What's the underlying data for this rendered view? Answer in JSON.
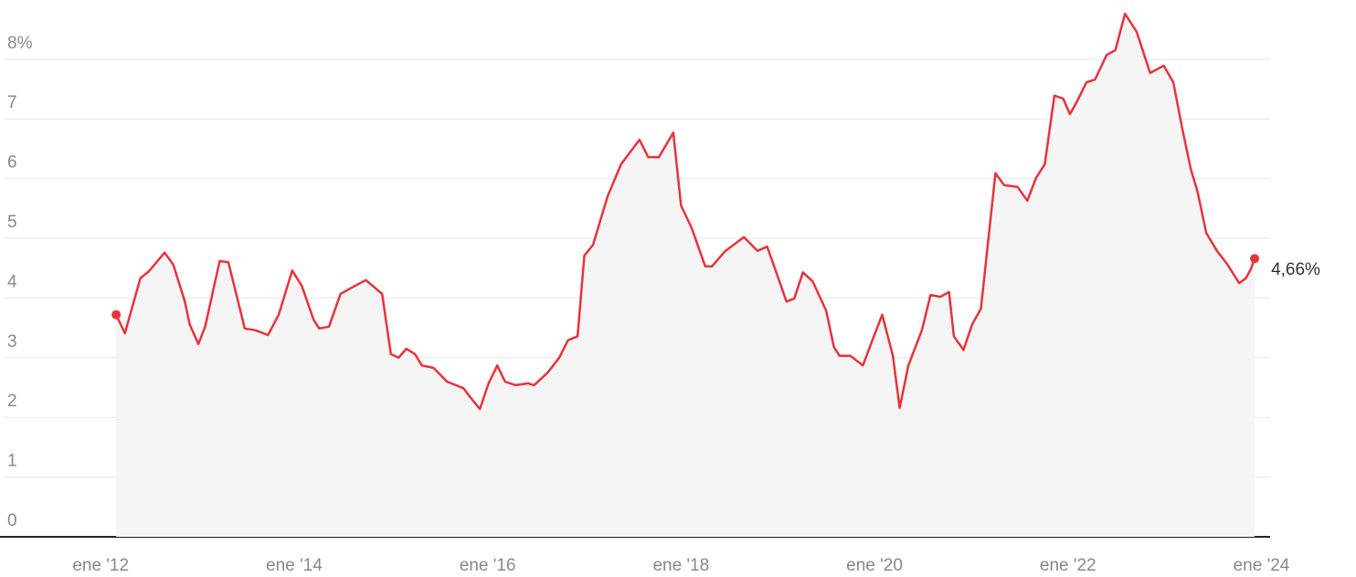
{
  "chart_data": {
    "type": "line",
    "x": [
      2012.16,
      2012.25,
      2012.41,
      2012.5,
      2012.66,
      2012.75,
      2012.87,
      2012.92,
      2013.01,
      2013.08,
      2013.23,
      2013.32,
      2013.49,
      2013.6,
      2013.73,
      2013.84,
      2013.98,
      2014.08,
      2014.2,
      2014.26,
      2014.36,
      2014.48,
      2014.59,
      2014.74,
      2014.91,
      2015.0,
      2015.08,
      2015.16,
      2015.25,
      2015.32,
      2015.44,
      2015.58,
      2015.75,
      2015.82,
      2015.92,
      2016.01,
      2016.1,
      2016.18,
      2016.29,
      2016.42,
      2016.48,
      2016.62,
      2016.74,
      2016.83,
      2016.93,
      2017.0,
      2017.09,
      2017.24,
      2017.38,
      2017.57,
      2017.66,
      2017.77,
      2017.92,
      2018.0,
      2018.11,
      2018.25,
      2018.32,
      2018.46,
      2018.65,
      2018.79,
      2018.89,
      2018.98,
      2019.09,
      2019.17,
      2019.26,
      2019.36,
      2019.5,
      2019.58,
      2019.64,
      2019.75,
      2019.88,
      2019.97,
      2020.08,
      2020.19,
      2020.26,
      2020.35,
      2020.49,
      2020.58,
      2020.68,
      2020.77,
      2020.82,
      2020.92,
      2021.01,
      2021.1,
      2021.25,
      2021.34,
      2021.48,
      2021.58,
      2021.67,
      2021.76,
      2021.86,
      2021.95,
      2022.02,
      2022.09,
      2022.19,
      2022.28,
      2022.4,
      2022.49,
      2022.59,
      2022.71,
      2022.85,
      2022.99,
      2023.09,
      2023.18,
      2023.27,
      2023.34,
      2023.43,
      2023.54,
      2023.65,
      2023.77,
      2023.84,
      2023.89,
      2023.93
    ],
    "series": [
      {
        "color": "#e8333a",
        "end_label": "4,66%",
        "values": [
          3.72,
          3.41,
          4.33,
          4.45,
          4.76,
          4.56,
          3.94,
          3.56,
          3.23,
          3.52,
          4.62,
          4.6,
          3.49,
          3.46,
          3.38,
          3.72,
          4.46,
          4.2,
          3.64,
          3.49,
          3.52,
          4.07,
          4.17,
          4.3,
          4.07,
          3.06,
          3.0,
          3.15,
          3.06,
          2.87,
          2.83,
          2.6,
          2.49,
          2.34,
          2.14,
          2.57,
          2.87,
          2.6,
          2.54,
          2.57,
          2.54,
          2.75,
          3.0,
          3.29,
          3.36,
          4.71,
          4.89,
          5.7,
          6.24,
          6.65,
          6.36,
          6.36,
          6.77,
          5.55,
          5.17,
          4.53,
          4.53,
          4.79,
          5.02,
          4.79,
          4.86,
          4.45,
          3.94,
          3.99,
          4.43,
          4.28,
          3.79,
          3.18,
          3.03,
          3.03,
          2.87,
          3.26,
          3.72,
          3.03,
          2.16,
          2.87,
          3.46,
          4.05,
          4.02,
          4.1,
          3.36,
          3.13,
          3.56,
          3.82,
          6.09,
          5.89,
          5.86,
          5.63,
          6.01,
          6.24,
          7.39,
          7.34,
          7.08,
          7.28,
          7.61,
          7.66,
          8.07,
          8.15,
          8.76,
          8.46,
          7.77,
          7.89,
          7.61,
          6.85,
          6.16,
          5.78,
          5.09,
          4.79,
          4.56,
          4.25,
          4.33,
          4.48,
          4.66
        ]
      }
    ],
    "xlim": [
      2011.11,
      2024.09
    ],
    "xticks": [
      {
        "value": 2012,
        "label": "ene '12"
      },
      {
        "value": 2014,
        "label": "ene '14"
      },
      {
        "value": 2016,
        "label": "ene '16"
      },
      {
        "value": 2018,
        "label": "ene '18"
      },
      {
        "value": 2020,
        "label": "ene '20"
      },
      {
        "value": 2022,
        "label": "ene '22"
      },
      {
        "value": 2024,
        "label": "ene '24"
      }
    ],
    "ylim": [
      0,
      8.8
    ],
    "yticks": [
      0,
      1,
      2,
      3,
      4,
      5,
      6,
      7,
      {
        "value": 8,
        "label": "8%"
      }
    ],
    "grid": true
  }
}
